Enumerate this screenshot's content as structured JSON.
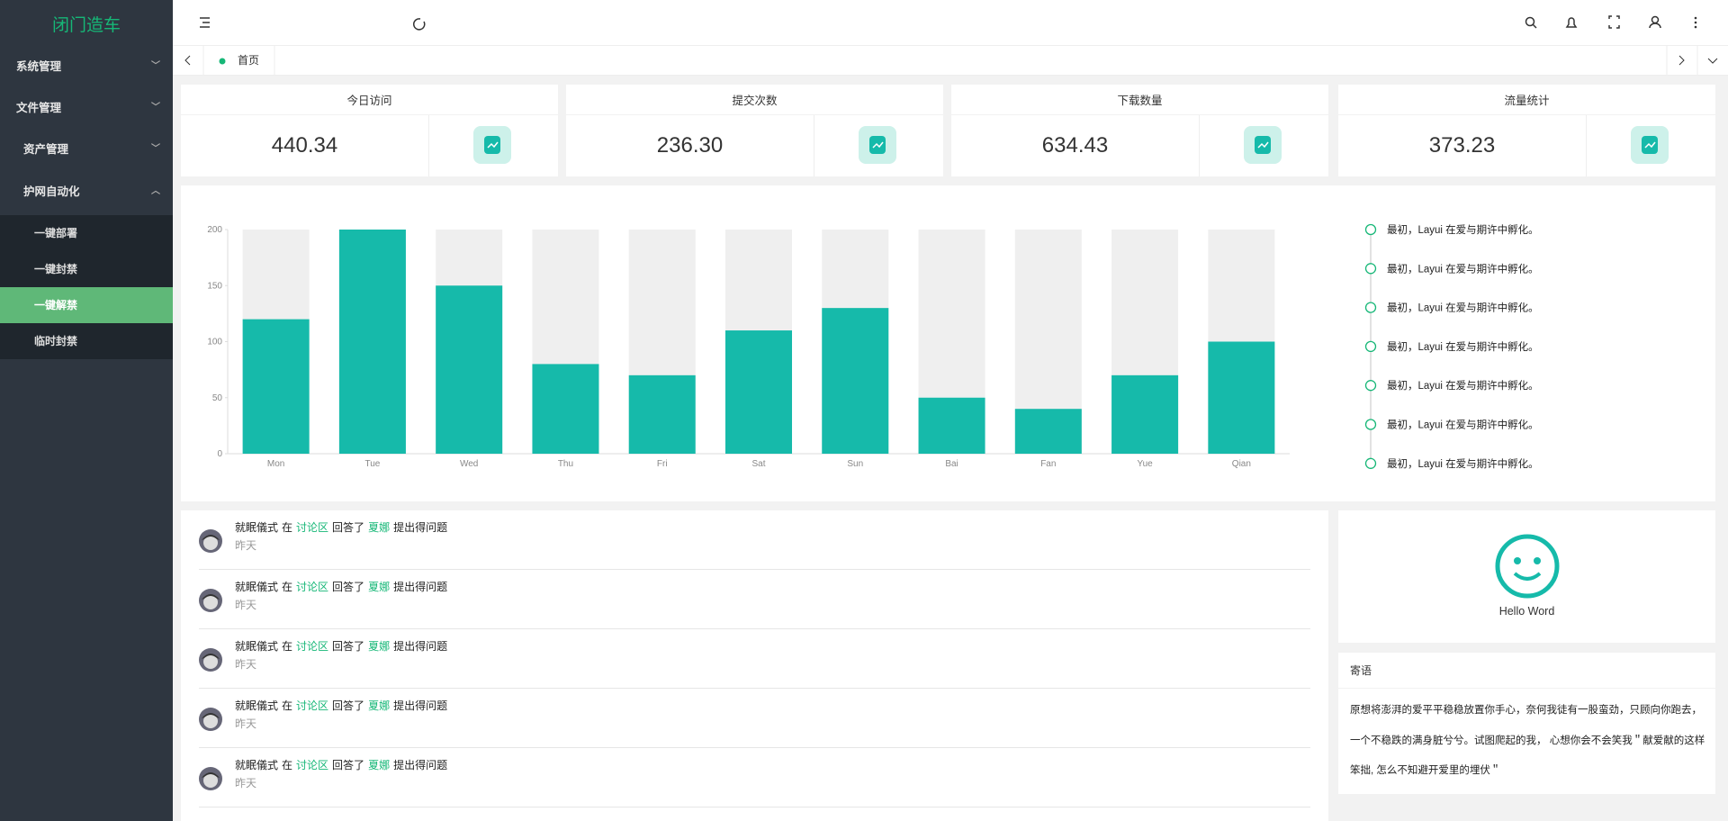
{
  "sidebar": {
    "title": "闭门造车",
    "menu": [
      {
        "label": "系统管理"
      },
      {
        "label": "文件管理"
      },
      {
        "label": "资产管理"
      },
      {
        "label": "护网自动化",
        "children": [
          "一键部署",
          "一键封禁",
          "一键解禁",
          "临时封禁"
        ]
      }
    ]
  },
  "tabs": [
    "首页"
  ],
  "stats": [
    {
      "title": "今日访问",
      "value": "440.34"
    },
    {
      "title": "提交次数",
      "value": "236.30"
    },
    {
      "title": "下载数量",
      "value": "634.43"
    },
    {
      "title": "流量统计",
      "value": "373.23"
    }
  ],
  "chart_data": {
    "type": "bar",
    "categories": [
      "Mon",
      "Tue",
      "Wed",
      "Thu",
      "Fri",
      "Sat",
      "Sun",
      "Bai",
      "Fan",
      "Yue",
      "Qian"
    ],
    "values": [
      120,
      200,
      150,
      80,
      70,
      110,
      130,
      50,
      40,
      70,
      100
    ],
    "color": "#16baaa",
    "ylim": [
      0,
      200
    ],
    "yticks": [
      0,
      50,
      100,
      150,
      200
    ],
    "grid": false
  },
  "timeline": [
    "最初，Layui 在爱与期许中孵化。",
    "最初，Layui 在爱与期许中孵化。",
    "最初，Layui 在爱与期许中孵化。",
    "最初，Layui 在爱与期许中孵化。",
    "最初，Layui 在爱与期许中孵化。",
    "最初，Layui 在爱与期许中孵化。",
    "最初，Layui 在爱与期许中孵化。"
  ],
  "activity": [
    {
      "user": "就眠儀式",
      "w1": "在",
      "place": "讨论区",
      "w2": "回答了",
      "target": "夏娜",
      "w3": "提出得问题",
      "time": "昨天"
    },
    {
      "user": "就眠儀式",
      "w1": "在",
      "place": "讨论区",
      "w2": "回答了",
      "target": "夏娜",
      "w3": "提出得问题",
      "time": "昨天"
    },
    {
      "user": "就眠儀式",
      "w1": "在",
      "place": "讨论区",
      "w2": "回答了",
      "target": "夏娜",
      "w3": "提出得问题",
      "time": "昨天"
    },
    {
      "user": "就眠儀式",
      "w1": "在",
      "place": "讨论区",
      "w2": "回答了",
      "target": "夏娜",
      "w3": "提出得问题",
      "time": "昨天"
    },
    {
      "user": "就眠儀式",
      "w1": "在",
      "place": "讨论区",
      "w2": "回答了",
      "target": "夏娜",
      "w3": "提出得问题",
      "time": "昨天"
    }
  ],
  "profile": {
    "name": "Hello Word"
  },
  "note": {
    "title": "寄语",
    "text": "原想将澎湃的爱平平稳稳放置你手心，奈何我徒有一股蛮劲，只顾向你跑去，一个不稳跌的满身脏兮兮。试图爬起的我， 心想你会不会笑我＂献爱献的这样笨拙, 怎么不知避开爱里的埋伏＂"
  }
}
